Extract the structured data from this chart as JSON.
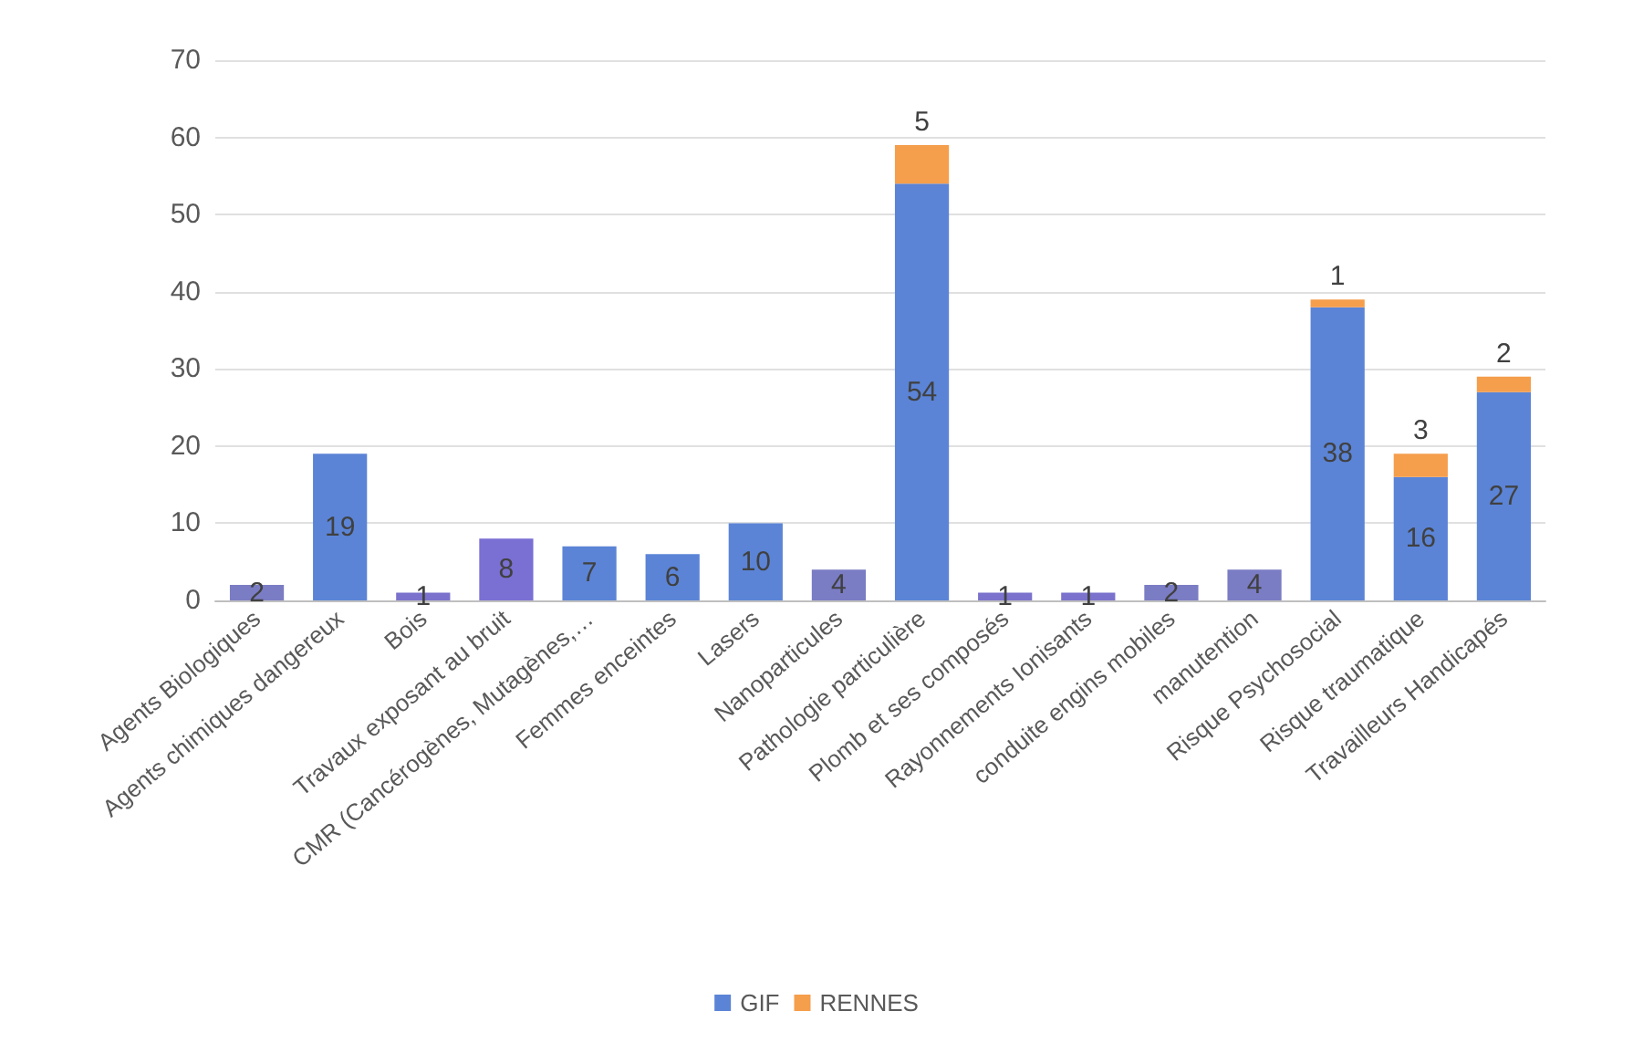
{
  "chart_data": {
    "type": "bar",
    "stacked": true,
    "categories": [
      "Agents Biologiques",
      "Agents chimiques dangereux",
      "Bois",
      "Travaux exposant au bruit",
      "CMR (Cancérogènes, Mutagènes,…",
      "Femmes enceintes",
      "Lasers",
      "Nanoparticules",
      "Pathologie particulière",
      "Plomb et ses composés",
      "Rayonnements Ionisants",
      "conduite engins mobiles",
      "manutention",
      "Risque Psychosocial",
      "Risque traumatique",
      "Travailleurs Handicapés"
    ],
    "series": [
      {
        "name": "GIF",
        "color": "#5b84d6",
        "colors": [
          "#7a7cc4",
          "#5b84d6",
          "#7a72cc",
          "#7a6fd2",
          "#5b84d6",
          "#5b84d6",
          "#5b84d6",
          "#7a7cc4",
          "#5b84d6",
          "#7a72cc",
          "#7a72cc",
          "#7a7cc4",
          "#7a7cc4",
          "#5b84d6",
          "#5b84d6",
          "#5b84d6"
        ],
        "values": [
          2,
          19,
          1,
          8,
          7,
          6,
          10,
          4,
          54,
          1,
          1,
          2,
          4,
          38,
          16,
          27
        ],
        "value_labels": [
          "2",
          "19",
          "1",
          "8",
          "7",
          "6",
          "10",
          "4",
          "54",
          "1",
          "1",
          "2",
          "4",
          "38",
          "16",
          "27"
        ]
      },
      {
        "name": "RENNES",
        "color": "#f59e4c",
        "values": [
          null,
          null,
          null,
          null,
          null,
          null,
          null,
          null,
          5,
          null,
          null,
          null,
          null,
          1,
          3,
          2
        ],
        "value_labels": [
          null,
          null,
          null,
          null,
          null,
          null,
          null,
          null,
          "5",
          null,
          null,
          null,
          null,
          "1",
          "3",
          "2"
        ]
      }
    ],
    "ylim": [
      0,
      70
    ],
    "yticks": [
      0,
      10,
      20,
      30,
      40,
      50,
      60,
      70
    ],
    "grid": "y",
    "legend": "bottom"
  }
}
